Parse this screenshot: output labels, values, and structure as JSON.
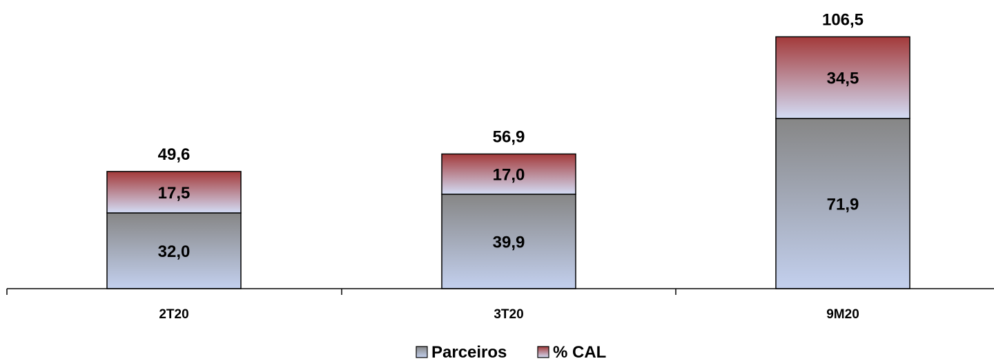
{
  "chart_data": {
    "type": "bar",
    "stacked": true,
    "categories": [
      "2T20",
      "3T20",
      "9M20"
    ],
    "series": [
      {
        "name": "Parceiros",
        "values": [
          32.0,
          39.9,
          71.9
        ],
        "labels": [
          "32,0",
          "39,9",
          "71,9"
        ],
        "gradient": [
          "#868686",
          "#c3d0ee"
        ]
      },
      {
        "name": "% CAL",
        "values": [
          17.5,
          17.0,
          34.5
        ],
        "labels": [
          "17,5",
          "17,0",
          "34,5"
        ],
        "gradient": [
          "#a33a3a",
          "#d3dcf5"
        ]
      }
    ],
    "totals": [
      49.6,
      56.9,
      106.5
    ],
    "total_labels": [
      "49,6",
      "56,9",
      "106,5"
    ],
    "ylim": [
      0,
      110
    ],
    "grid": false,
    "legend_position": "bottom-center",
    "title": "",
    "xlabel": "",
    "ylabel": ""
  }
}
